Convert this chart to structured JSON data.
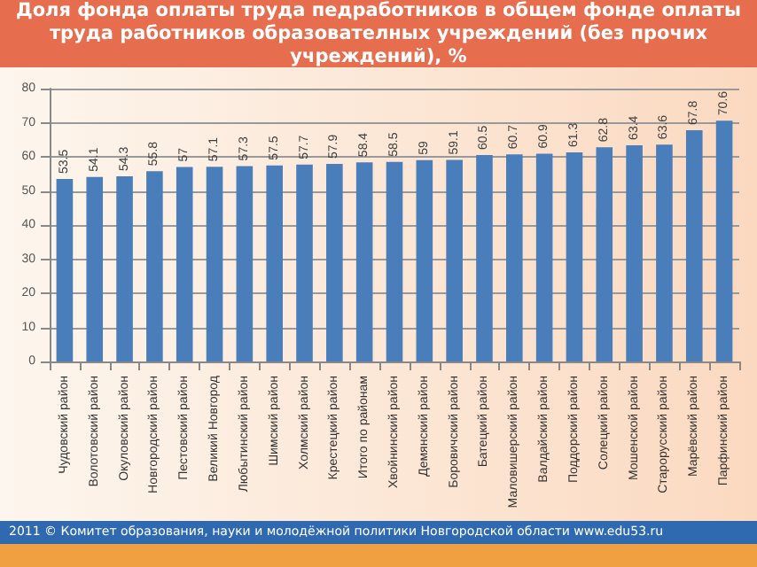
{
  "chart_data": {
    "type": "bar",
    "title": "Доля фонда оплаты труда педработников в общем фонде оплаты труда работников образователных учреждений (без прочих учреждений), %",
    "categories": [
      "Чудовский район",
      "Волотовский район",
      "Окуловский район",
      "Новгородский район",
      "Пестовский район",
      "Великий Новгород",
      "Любытинский район",
      "Шимский район",
      "Холмский район",
      "Крестецкий район",
      "Итого по районам",
      "Хвойнинский район",
      "Демянский район",
      "Боровичский район",
      "Батецкий район",
      "Маловишерский район",
      "Валдайский район",
      "Поддорский район",
      "Солецкий район",
      "Мошенской район",
      "Старорусский район",
      "Марёвский район",
      "Парфинский район"
    ],
    "values": [
      53.5,
      54.1,
      54.3,
      55.8,
      57,
      57.1,
      57.3,
      57.5,
      57.7,
      57.9,
      58.4,
      58.5,
      59,
      59.1,
      60.5,
      60.7,
      60.9,
      61.3,
      62.8,
      63.4,
      63.6,
      67.8,
      70.6
    ],
    "color": "#4a7ebb",
    "ylim": [
      0,
      80
    ],
    "yticks": [
      0,
      10,
      20,
      30,
      40,
      50,
      60,
      70,
      80
    ],
    "grid": "y",
    "data_labels": true,
    "annotations": [
      "2011 © Комитет образования, науки и молодёжной политики Новгородской области www.edu53.ru"
    ]
  }
}
